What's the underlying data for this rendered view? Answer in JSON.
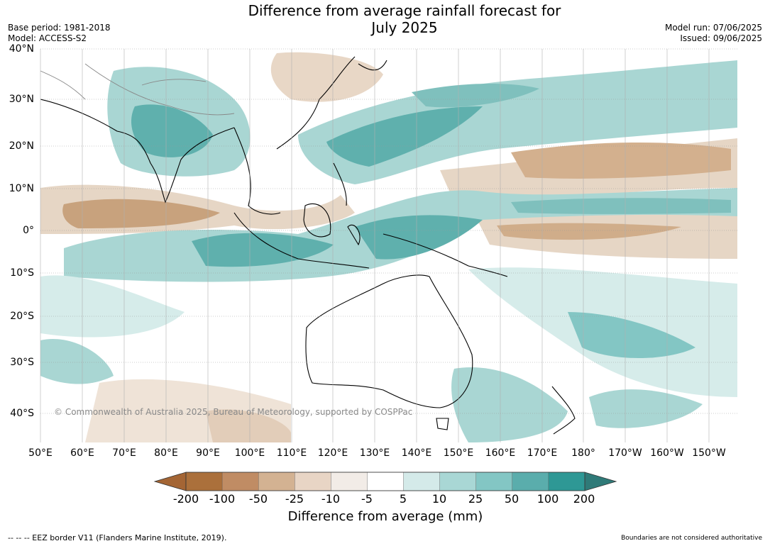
{
  "header": {
    "title_line1": "Difference from average rainfall forecast for",
    "title_line2": "July 2025",
    "base_period": "Base period: 1981-2018",
    "model": "Model: ACCESS-S2",
    "model_run": "Model run: 07/06/2025",
    "issued": "Issued: 09/06/2025"
  },
  "map": {
    "lat_labels": [
      "40°N",
      "30°N",
      "20°N",
      "10°N",
      "0°",
      "10°S",
      "20°S",
      "30°S",
      "40°S"
    ],
    "lon_labels": [
      "50°E",
      "60°E",
      "70°E",
      "80°E",
      "90°E",
      "100°E",
      "110°E",
      "120°E",
      "130°E",
      "140°E",
      "150°E",
      "160°E",
      "170°E",
      "180°",
      "170°W",
      "160°W",
      "150°W"
    ],
    "copyright": "© Commonwealth of Australia 2025, Bureau of Meteorology, supported by COSPPac",
    "colors": {
      "wet_light": "#d6ecea",
      "wet_mid": "#a9d6d3",
      "wet_strong": "#5fb0ad",
      "dry_light": "#efe5dd",
      "dry_mid": "#e2cdb9",
      "dry_strong": "#c59a74",
      "land_outline": "#000000",
      "border": "#888888"
    }
  },
  "colorbar": {
    "ticks": [
      "-200",
      "-100",
      "-50",
      "-25",
      "-10",
      "-5",
      "5",
      "10",
      "25",
      "50",
      "100",
      "200"
    ],
    "colors": [
      "#a46534",
      "#ab703b",
      "#c08c64",
      "#d3b292",
      "#e8d5c5",
      "#f2ece7",
      "#ffffff",
      "#d4eae9",
      "#a9d7d5",
      "#83c6c4",
      "#5aadac",
      "#2e9895",
      "#2f7a78"
    ],
    "label": "Difference from average (mm)"
  },
  "footer": {
    "left": "--  --  -- EEZ border V11 (Flanders Marine Institute, 2019).",
    "right": "Boundaries are not considered authoritative"
  }
}
